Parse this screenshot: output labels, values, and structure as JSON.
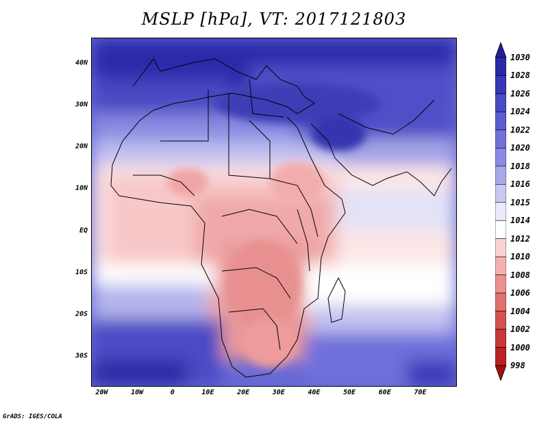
{
  "title": "MSLP [hPa], VT: 2017121803",
  "footer": "GrADS: IGES/COLA",
  "map": {
    "extent": {
      "lon": [
        -23,
        80
      ],
      "lat": [
        -37,
        46
      ]
    },
    "lat_ticks": [
      {
        "label": "40N",
        "lat": 40
      },
      {
        "label": "30N",
        "lat": 30
      },
      {
        "label": "20N",
        "lat": 20
      },
      {
        "label": "10N",
        "lat": 10
      },
      {
        "label": "EQ",
        "lat": 0
      },
      {
        "label": "10S",
        "lat": -10
      },
      {
        "label": "20S",
        "lat": -20
      },
      {
        "label": "30S",
        "lat": -30
      }
    ],
    "lon_ticks": [
      {
        "label": "20W",
        "lon": -20
      },
      {
        "label": "10W",
        "lon": -10
      },
      {
        "label": "0",
        "lon": 0
      },
      {
        "label": "10E",
        "lon": 10
      },
      {
        "label": "20E",
        "lon": 20
      },
      {
        "label": "30E",
        "lon": 30
      },
      {
        "label": "40E",
        "lon": 40
      },
      {
        "label": "50E",
        "lon": 50
      },
      {
        "label": "60E",
        "lon": 60
      },
      {
        "label": "70E",
        "lon": 70
      }
    ]
  },
  "colorbar": {
    "levels": [
      "1030",
      "1028",
      "1026",
      "1024",
      "1022",
      "1020",
      "1018",
      "1016",
      "1015",
      "1014",
      "1012",
      "1010",
      "1008",
      "1006",
      "1004",
      "1002",
      "1000",
      "998"
    ],
    "colors": [
      "#1e1e96",
      "#2828a8",
      "#3737b8",
      "#4a4ac4",
      "#5c5cd0",
      "#7070da",
      "#8a8ae2",
      "#a8a8ea",
      "#c8c8f2",
      "#eaeafa",
      "#ffffff",
      "#fad2d2",
      "#f4b0b0",
      "#ec9090",
      "#e07070",
      "#d45050",
      "#c83838",
      "#b82222",
      "#a01010"
    ]
  }
}
